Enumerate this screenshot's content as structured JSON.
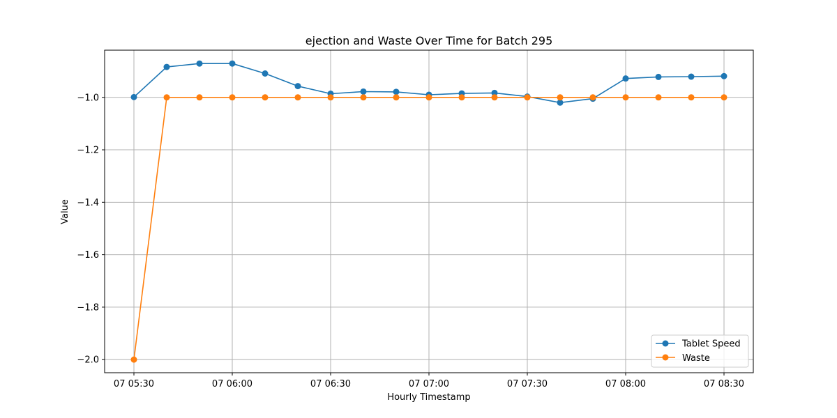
{
  "chart_data": {
    "type": "line",
    "title": "ejection and Waste Over Time for Batch 295",
    "xlabel": "Hourly Timestamp",
    "ylabel": "Value",
    "x": [
      "05:30",
      "05:40",
      "05:50",
      "06:00",
      "06:10",
      "06:20",
      "06:30",
      "06:40",
      "06:50",
      "07:00",
      "07:10",
      "07:20",
      "07:30",
      "07:40",
      "07:50",
      "08:00",
      "08:10",
      "08:20",
      "08:30"
    ],
    "xticks": [
      {
        "x": "05:30",
        "label": "07 05:30"
      },
      {
        "x": "06:00",
        "label": "07 06:00"
      },
      {
        "x": "06:30",
        "label": "07 06:30"
      },
      {
        "x": "07:00",
        "label": "07 07:00"
      },
      {
        "x": "07:30",
        "label": "07 07:30"
      },
      {
        "x": "08:00",
        "label": "07 08:00"
      },
      {
        "x": "08:30",
        "label": "07 08:30"
      }
    ],
    "yticks": [
      {
        "value": -1.0,
        "label": "−1.0"
      },
      {
        "value": -1.2,
        "label": "−1.2"
      },
      {
        "value": -1.4,
        "label": "−1.4"
      },
      {
        "value": -1.6,
        "label": "−1.6"
      },
      {
        "value": -1.8,
        "label": "−1.8"
      },
      {
        "value": -2.0,
        "label": "−2.0"
      }
    ],
    "ylim": [
      -2.05,
      -0.82
    ],
    "grid": true,
    "legend_position": "lower-right",
    "series": [
      {
        "name": "Tablet Speed",
        "color": "#1f77b4",
        "marker": "circle",
        "values": [
          -0.999,
          -0.884,
          -0.871,
          -0.871,
          -0.909,
          -0.957,
          -0.986,
          -0.978,
          -0.979,
          -0.99,
          -0.985,
          -0.983,
          -0.997,
          -1.02,
          -1.005,
          -0.928,
          -0.922,
          -0.921,
          -0.919
        ]
      },
      {
        "name": "Waste",
        "color": "#ff7f0e",
        "marker": "circle",
        "values": [
          -2.0,
          -1.0,
          -1.0,
          -1.0,
          -1.0,
          -1.0,
          -1.0,
          -1.0,
          -1.0,
          -1.0,
          -1.0,
          -1.0,
          -1.0,
          -1.0,
          -1.0,
          -1.0,
          -1.0,
          -1.0,
          -1.0
        ]
      }
    ]
  }
}
